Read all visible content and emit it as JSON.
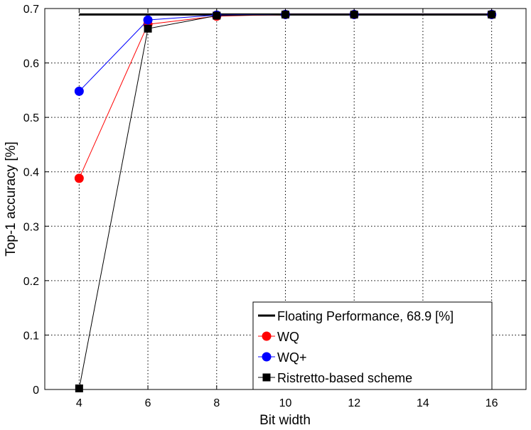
{
  "chart_data": {
    "type": "line",
    "title": "",
    "xlabel": "Bit width",
    "ylabel": "Top-1 accuracy [%]",
    "xlim": [
      3,
      17
    ],
    "ylim": [
      0,
      0.7
    ],
    "x_ticks": [
      4,
      6,
      8,
      10,
      12,
      14,
      16
    ],
    "y_ticks": [
      0,
      0.1,
      0.2,
      0.3,
      0.4,
      0.5,
      0.6,
      0.7
    ],
    "x_tick_labels": [
      "4",
      "6",
      "8",
      "10",
      "12",
      "14",
      "16"
    ],
    "y_tick_labels": [
      "0",
      "0.1",
      "0.2",
      "0.3",
      "0.4",
      "0.5",
      "0.6",
      "0.7"
    ],
    "grid": true,
    "legend_position": "bottom-right",
    "series": [
      {
        "name": "Floating Performance, 68.9 [%]",
        "color": "#000000",
        "marker": "none",
        "line_width": 3,
        "x": [
          4,
          16
        ],
        "y": [
          0.689,
          0.689
        ]
      },
      {
        "name": "WQ",
        "color": "#ff0000",
        "marker": "circle",
        "line_width": 1,
        "x": [
          4,
          6,
          8,
          10,
          12,
          16
        ],
        "y": [
          0.388,
          0.671,
          0.686,
          0.689,
          0.689,
          0.689
        ]
      },
      {
        "name": "WQ+",
        "color": "#0000ff",
        "marker": "circle",
        "line_width": 1,
        "x": [
          4,
          6,
          8,
          10,
          12,
          16
        ],
        "y": [
          0.548,
          0.679,
          0.688,
          0.689,
          0.689,
          0.689
        ]
      },
      {
        "name": "Ristretto-based scheme",
        "color": "#000000",
        "marker": "square",
        "line_width": 1,
        "x": [
          4,
          6,
          8,
          10,
          12,
          16
        ],
        "y": [
          0.002,
          0.663,
          0.687,
          0.689,
          0.689,
          0.689
        ]
      }
    ]
  }
}
